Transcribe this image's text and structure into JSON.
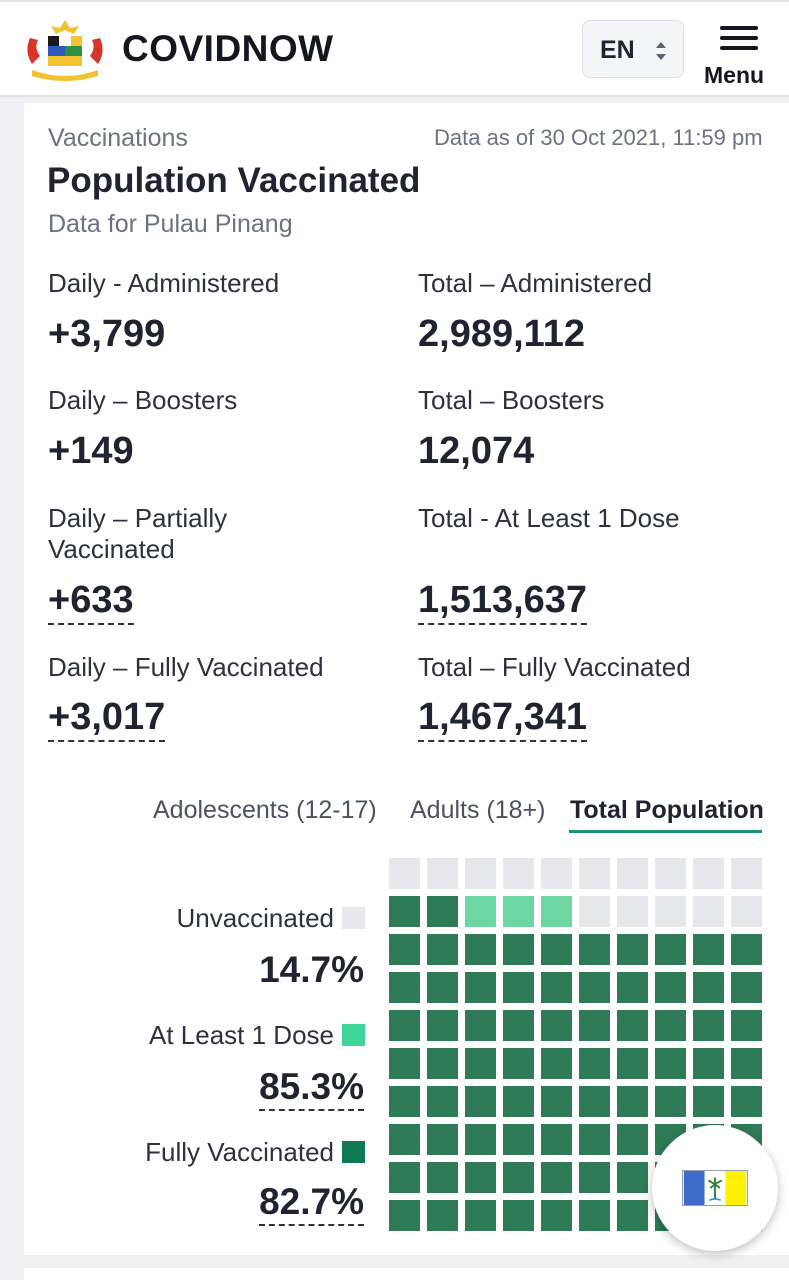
{
  "header": {
    "brand": "COVIDNOW",
    "language": "EN",
    "menu_label": "Menu"
  },
  "card": {
    "section": "Vaccinations",
    "as_of": "Data as of 30 Oct 2021, 11:59 pm",
    "title": "Population Vaccinated",
    "subtitle": "Data for Pulau Pinang"
  },
  "stats": {
    "daily_administered": {
      "label": "Daily - Administered",
      "value": "+3,799"
    },
    "total_administered": {
      "label": "Total – Administered",
      "value": "2,989,112"
    },
    "daily_boosters": {
      "label": "Daily – Boosters",
      "value": "+149"
    },
    "total_boosters": {
      "label": "Total – Boosters",
      "value": "12,074"
    },
    "daily_partial": {
      "label": "Daily – Partially Vaccinated",
      "value": "+633"
    },
    "total_partial": {
      "label": "Total - At Least 1 Dose",
      "value": "1,513,637"
    },
    "daily_full": {
      "label": "Daily – Fully Vaccinated",
      "value": "+3,017"
    },
    "total_full": {
      "label": "Total – Fully Vaccinated",
      "value": "1,467,341"
    }
  },
  "tabs": [
    "Adolescents (12-17)",
    "Adults (18+)",
    "Total Population"
  ],
  "active_tab": "Total Population",
  "legend": {
    "unvaccinated": {
      "label": "Unvaccinated",
      "value": "14.7%",
      "color": "#e8e9ec"
    },
    "at_least_1": {
      "label": "At Least 1 Dose",
      "value": "85.3%",
      "color": "#3ed598"
    },
    "fully": {
      "label": "Fully Vaccinated",
      "value": "82.7%",
      "color": "#0e7a55"
    }
  },
  "waffle": {
    "total_cells": 100,
    "unvaccinated_cells": 15,
    "partial_cells": 3,
    "fully_cells": 82,
    "colors": {
      "unvaccinated": "#e6e7eb",
      "partial": "#6ed6a2",
      "fully": "#2f7a57"
    }
  },
  "colors": {
    "accent": "#1f8f6f"
  }
}
